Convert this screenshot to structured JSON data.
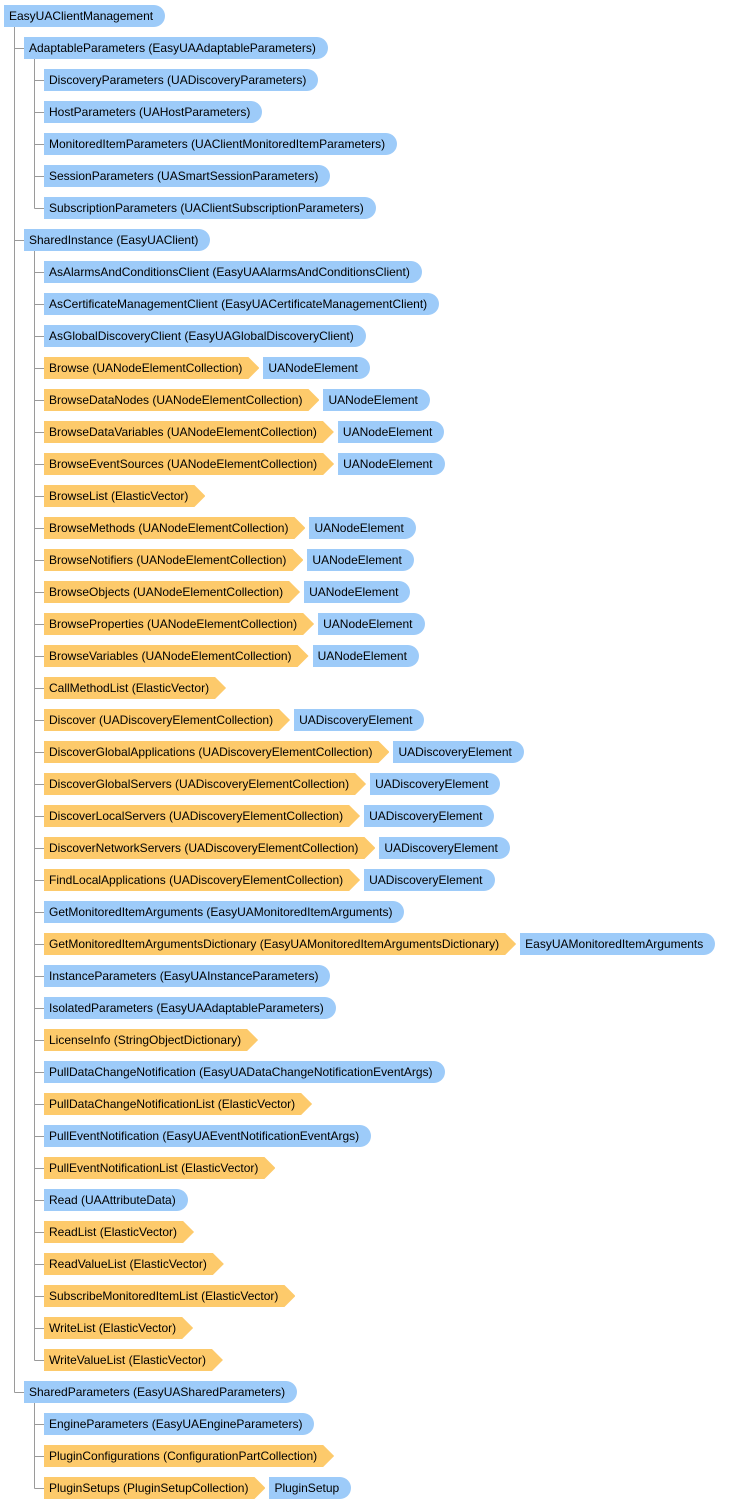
{
  "nodes": [
    {
      "label": "EasyUAClientManagement",
      "level": 0,
      "shape": "pill",
      "color": "#9dcbf9"
    },
    {
      "label": "AdaptableParameters (EasyUAAdaptableParameters)",
      "level": 1,
      "shape": "pill",
      "color": "#9dcbf9"
    },
    {
      "label": "DiscoveryParameters (UADiscoveryParameters)",
      "level": 2,
      "shape": "pill",
      "color": "#9dcbf9"
    },
    {
      "label": "HostParameters (UAHostParameters)",
      "level": 2,
      "shape": "pill",
      "color": "#9dcbf9"
    },
    {
      "label": "MonitoredItemParameters (UAClientMonitoredItemParameters)",
      "level": 2,
      "shape": "pill",
      "color": "#9dcbf9"
    },
    {
      "label": "SessionParameters (UASmartSessionParameters)",
      "level": 2,
      "shape": "pill",
      "color": "#9dcbf9"
    },
    {
      "label": "SubscriptionParameters (UAClientSubscriptionParameters)",
      "level": 2,
      "shape": "pill",
      "color": "#9dcbf9"
    },
    {
      "label": "SharedInstance (EasyUAClient)",
      "level": 1,
      "shape": "pill",
      "color": "#9dcbf9"
    },
    {
      "label": "AsAlarmsAndConditionsClient (EasyUAAlarmsAndConditionsClient)",
      "level": 2,
      "shape": "pill",
      "color": "#9dcbf9"
    },
    {
      "label": "AsCertificateManagementClient (EasyUACertificateManagementClient)",
      "level": 2,
      "shape": "pill",
      "color": "#9dcbf9"
    },
    {
      "label": "AsGlobalDiscoveryClient (EasyUAGlobalDiscoveryClient)",
      "level": 2,
      "shape": "pill",
      "color": "#9dcbf9"
    },
    {
      "label": "Browse (UANodeElementCollection)",
      "level": 2,
      "shape": "arrow",
      "color": "#fdca6b",
      "element": "UANodeElement"
    },
    {
      "label": "BrowseDataNodes (UANodeElementCollection)",
      "level": 2,
      "shape": "arrow",
      "color": "#fdca6b",
      "element": "UANodeElement"
    },
    {
      "label": "BrowseDataVariables (UANodeElementCollection)",
      "level": 2,
      "shape": "arrow",
      "color": "#fdca6b",
      "element": "UANodeElement"
    },
    {
      "label": "BrowseEventSources (UANodeElementCollection)",
      "level": 2,
      "shape": "arrow",
      "color": "#fdca6b",
      "element": "UANodeElement"
    },
    {
      "label": "BrowseList (ElasticVector)",
      "level": 2,
      "shape": "arrow",
      "color": "#fdca6b"
    },
    {
      "label": "BrowseMethods (UANodeElementCollection)",
      "level": 2,
      "shape": "arrow",
      "color": "#fdca6b",
      "element": "UANodeElement"
    },
    {
      "label": "BrowseNotifiers (UANodeElementCollection)",
      "level": 2,
      "shape": "arrow",
      "color": "#fdca6b",
      "element": "UANodeElement"
    },
    {
      "label": "BrowseObjects (UANodeElementCollection)",
      "level": 2,
      "shape": "arrow",
      "color": "#fdca6b",
      "element": "UANodeElement"
    },
    {
      "label": "BrowseProperties (UANodeElementCollection)",
      "level": 2,
      "shape": "arrow",
      "color": "#fdca6b",
      "element": "UANodeElement"
    },
    {
      "label": "BrowseVariables (UANodeElementCollection)",
      "level": 2,
      "shape": "arrow",
      "color": "#fdca6b",
      "element": "UANodeElement"
    },
    {
      "label": "CallMethodList (ElasticVector)",
      "level": 2,
      "shape": "arrow",
      "color": "#fdca6b"
    },
    {
      "label": "Discover (UADiscoveryElementCollection)",
      "level": 2,
      "shape": "arrow",
      "color": "#fdca6b",
      "element": "UADiscoveryElement"
    },
    {
      "label": "DiscoverGlobalApplications (UADiscoveryElementCollection)",
      "level": 2,
      "shape": "arrow",
      "color": "#fdca6b",
      "element": "UADiscoveryElement"
    },
    {
      "label": "DiscoverGlobalServers (UADiscoveryElementCollection)",
      "level": 2,
      "shape": "arrow",
      "color": "#fdca6b",
      "element": "UADiscoveryElement"
    },
    {
      "label": "DiscoverLocalServers (UADiscoveryElementCollection)",
      "level": 2,
      "shape": "arrow",
      "color": "#fdca6b",
      "element": "UADiscoveryElement"
    },
    {
      "label": "DiscoverNetworkServers (UADiscoveryElementCollection)",
      "level": 2,
      "shape": "arrow",
      "color": "#fdca6b",
      "element": "UADiscoveryElement"
    },
    {
      "label": "FindLocalApplications (UADiscoveryElementCollection)",
      "level": 2,
      "shape": "arrow",
      "color": "#fdca6b",
      "element": "UADiscoveryElement"
    },
    {
      "label": "GetMonitoredItemArguments (EasyUAMonitoredItemArguments)",
      "level": 2,
      "shape": "pill",
      "color": "#9dcbf9"
    },
    {
      "label": "GetMonitoredItemArgumentsDictionary (EasyUAMonitoredItemArgumentsDictionary)",
      "level": 2,
      "shape": "arrow",
      "color": "#fdca6b",
      "element": "EasyUAMonitoredItemArguments"
    },
    {
      "label": "InstanceParameters (EasyUAInstanceParameters)",
      "level": 2,
      "shape": "pill",
      "color": "#9dcbf9"
    },
    {
      "label": "IsolatedParameters (EasyUAAdaptableParameters)",
      "level": 2,
      "shape": "pill",
      "color": "#9dcbf9"
    },
    {
      "label": "LicenseInfo (StringObjectDictionary)",
      "level": 2,
      "shape": "arrow",
      "color": "#fdca6b"
    },
    {
      "label": "PullDataChangeNotification (EasyUADataChangeNotificationEventArgs)",
      "level": 2,
      "shape": "pill",
      "color": "#9dcbf9"
    },
    {
      "label": "PullDataChangeNotificationList (ElasticVector)",
      "level": 2,
      "shape": "arrow",
      "color": "#fdca6b"
    },
    {
      "label": "PullEventNotification (EasyUAEventNotificationEventArgs)",
      "level": 2,
      "shape": "pill",
      "color": "#9dcbf9"
    },
    {
      "label": "PullEventNotificationList (ElasticVector)",
      "level": 2,
      "shape": "arrow",
      "color": "#fdca6b"
    },
    {
      "label": "Read (UAAttributeData)",
      "level": 2,
      "shape": "pill",
      "color": "#9dcbf9"
    },
    {
      "label": "ReadList (ElasticVector)",
      "level": 2,
      "shape": "arrow",
      "color": "#fdca6b"
    },
    {
      "label": "ReadValueList (ElasticVector)",
      "level": 2,
      "shape": "arrow",
      "color": "#fdca6b"
    },
    {
      "label": "SubscribeMonitoredItemList (ElasticVector)",
      "level": 2,
      "shape": "arrow",
      "color": "#fdca6b"
    },
    {
      "label": "WriteList (ElasticVector)",
      "level": 2,
      "shape": "arrow",
      "color": "#fdca6b"
    },
    {
      "label": "WriteValueList (ElasticVector)",
      "level": 2,
      "shape": "arrow",
      "color": "#fdca6b"
    },
    {
      "label": "SharedParameters (EasyUASharedParameters)",
      "level": 1,
      "shape": "pill",
      "color": "#9dcbf9"
    },
    {
      "label": "EngineParameters (EasyUAEngineParameters)",
      "level": 2,
      "shape": "pill",
      "color": "#9dcbf9"
    },
    {
      "label": "PluginConfigurations (ConfigurationPartCollection)",
      "level": 2,
      "shape": "arrow",
      "color": "#fdca6b"
    },
    {
      "label": "PluginSetups (PluginSetupCollection)",
      "level": 2,
      "shape": "arrow",
      "color": "#fdca6b",
      "element": "PluginSetup"
    }
  ]
}
